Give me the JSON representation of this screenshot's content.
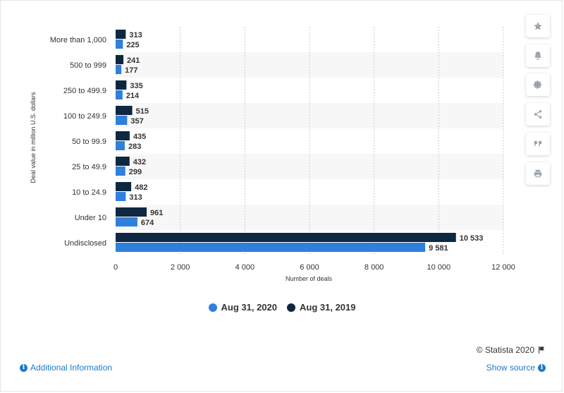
{
  "chart_data": {
    "type": "bar",
    "orientation": "horizontal",
    "categories": [
      "More than 1,000",
      "500 to 999",
      "250 to 499.9",
      "100 to 249.9",
      "50 to 99.9",
      "25 to 49.9",
      "10 to 24.9",
      "Under 10",
      "Undisclosed"
    ],
    "series": [
      {
        "name": "Aug 31, 2019",
        "color": "#0f2841",
        "values": [
          313,
          241,
          335,
          515,
          435,
          432,
          482,
          961,
          10533
        ],
        "labels": [
          "313",
          "241",
          "335",
          "515",
          "435",
          "432",
          "482",
          "961",
          "10 533"
        ]
      },
      {
        "name": "Aug 31, 2020",
        "color": "#2f7fdc",
        "values": [
          225,
          177,
          214,
          357,
          283,
          299,
          313,
          674,
          9581
        ],
        "labels": [
          "225",
          "177",
          "214",
          "357",
          "283",
          "299",
          "313",
          "674",
          "9 581"
        ]
      }
    ],
    "xlabel": "Number of deals",
    "ylabel": "Deal value in million U.S. dollars",
    "xlim": [
      0,
      12000
    ],
    "xticks": [
      0,
      2000,
      4000,
      6000,
      8000,
      10000,
      12000
    ],
    "xtick_labels": [
      "0",
      "2 000",
      "4 000",
      "6 000",
      "8 000",
      "10 000",
      "12 000"
    ],
    "grid": "vertical dashed",
    "legend_position": "bottom"
  },
  "legend": {
    "items": [
      {
        "label": "Aug 31, 2020",
        "color": "#2f7fdc"
      },
      {
        "label": "Aug 31, 2019",
        "color": "#0f2841"
      }
    ]
  },
  "toolbar": {
    "buttons": [
      {
        "icon": "star-icon"
      },
      {
        "icon": "bell-icon"
      },
      {
        "icon": "gear-icon"
      },
      {
        "icon": "share-icon"
      },
      {
        "icon": "quote-icon"
      },
      {
        "icon": "print-icon"
      }
    ]
  },
  "footer": {
    "credits": "© Statista 2020",
    "additional_info": "Additional Information",
    "show_source": "Show source"
  }
}
